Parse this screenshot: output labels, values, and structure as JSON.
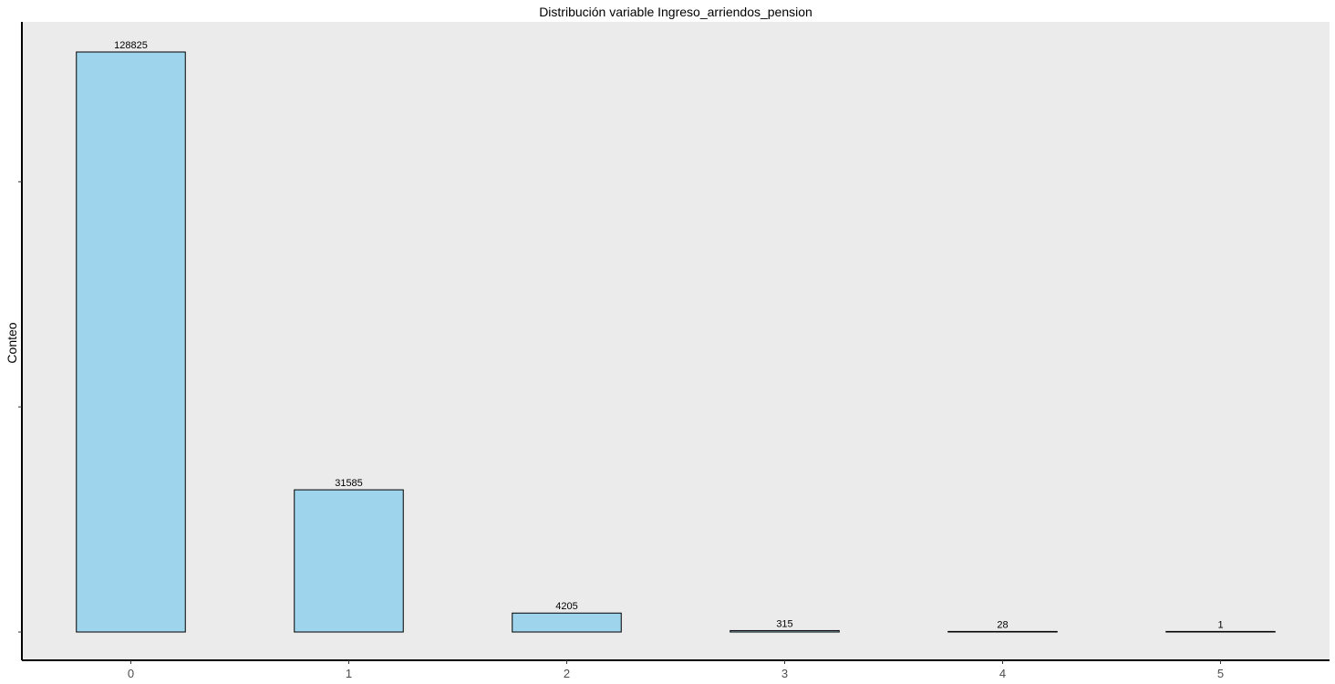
{
  "chart_data": {
    "type": "bar",
    "title": "Distribución variable Ingreso_arriendos_pension",
    "xlabel": "",
    "ylabel": "Conteo",
    "categories": [
      "0",
      "1",
      "2",
      "3",
      "4",
      "5"
    ],
    "values": [
      128825,
      31585,
      4205,
      315,
      28,
      1
    ],
    "data_labels": [
      "128825",
      "31585",
      "4205",
      "315",
      "28",
      "1"
    ],
    "ylim": [
      0,
      135000
    ],
    "y_tick_values": [
      0,
      50000,
      100000
    ],
    "y_tick_labels_shown": false,
    "grid": false,
    "legend": "none",
    "colors": {
      "bar_fill": "#9ed5ec",
      "bar_stroke": "#000000",
      "panel_background": "#ebebeb"
    }
  }
}
